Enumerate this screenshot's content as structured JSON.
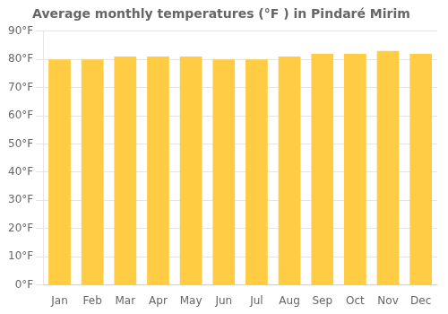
{
  "chart_data": {
    "type": "bar",
    "title": "Average monthly temperatures (°F ) in Pindaré Mirim",
    "categories": [
      "Jan",
      "Feb",
      "Mar",
      "Apr",
      "May",
      "Jun",
      "Jul",
      "Aug",
      "Sep",
      "Oct",
      "Nov",
      "Dec"
    ],
    "values": [
      80,
      80,
      81,
      81,
      81,
      80,
      80,
      81,
      82,
      82,
      83,
      82
    ],
    "color": "#FFCC44",
    "ylim": [
      0,
      90
    ],
    "yticks": [
      {
        "value": 0,
        "label": "0°F"
      },
      {
        "value": 10,
        "label": "10°F"
      },
      {
        "value": 20,
        "label": "20°F"
      },
      {
        "value": 30,
        "label": "30°F"
      },
      {
        "value": 40,
        "label": "40°F"
      },
      {
        "value": 50,
        "label": "50°F"
      },
      {
        "value": 60,
        "label": "60°F"
      },
      {
        "value": 70,
        "label": "70°F"
      },
      {
        "value": 80,
        "label": "80°F"
      },
      {
        "value": 90,
        "label": "90°F"
      }
    ],
    "grid": true
  }
}
